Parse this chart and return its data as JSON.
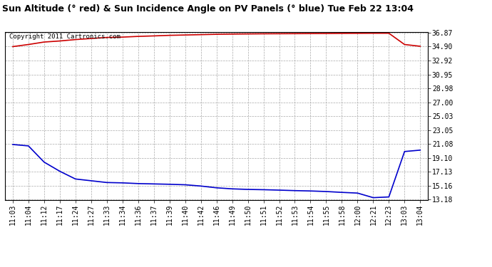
{
  "title": "Sun Altitude (° red) & Sun Incidence Angle on PV Panels (° blue) Tue Feb 22 13:04",
  "copyright_text": "Copyright 2011 Cartronics.com",
  "background_color": "#ffffff",
  "plot_bg_color": "#ffffff",
  "grid_color": "#aaaaaa",
  "x_labels": [
    "11:03",
    "11:04",
    "11:12",
    "11:17",
    "11:24",
    "11:27",
    "11:33",
    "11:34",
    "11:36",
    "11:37",
    "11:39",
    "11:40",
    "11:42",
    "11:46",
    "11:49",
    "11:50",
    "11:51",
    "11:52",
    "11:53",
    "11:54",
    "11:55",
    "11:58",
    "12:00",
    "12:21",
    "12:23",
    "13:03",
    "13:04"
  ],
  "y_ticks": [
    13.18,
    15.16,
    17.13,
    19.1,
    21.08,
    23.05,
    25.03,
    27.0,
    28.98,
    30.95,
    32.92,
    34.9,
    36.87
  ],
  "y_min": 13.18,
  "y_max": 36.87,
  "red_line": {
    "color": "#cc0000",
    "data": [
      34.9,
      35.2,
      35.55,
      35.7,
      35.9,
      36.05,
      36.2,
      36.25,
      36.35,
      36.42,
      36.5,
      36.55,
      36.6,
      36.65,
      36.68,
      36.7,
      36.72,
      36.73,
      36.74,
      36.75,
      36.76,
      36.78,
      36.79,
      36.8,
      36.8,
      35.2,
      34.95
    ]
  },
  "blue_line": {
    "color": "#0000cc",
    "data": [
      21.0,
      20.8,
      18.5,
      17.2,
      16.1,
      15.85,
      15.6,
      15.55,
      15.45,
      15.4,
      15.35,
      15.28,
      15.1,
      14.85,
      14.7,
      14.62,
      14.58,
      14.52,
      14.45,
      14.4,
      14.32,
      14.2,
      14.1,
      13.45,
      13.55,
      20.0,
      20.2
    ]
  },
  "title_fontsize": 9,
  "tick_fontsize": 7,
  "copyright_fontsize": 6.5
}
